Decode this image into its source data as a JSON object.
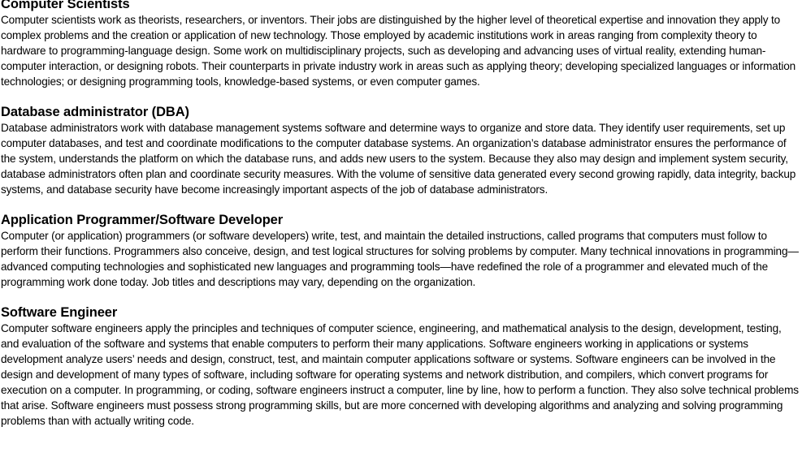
{
  "sections": [
    {
      "heading": "Computer Scientists",
      "body": "Computer scientists work as theorists, researchers, or inventors. Their jobs are distinguished by the higher level of theoretical expertise and innovation they apply to complex problems and the creation or application of new technology. Those employed by academic institutions work in areas ranging from complexity theory to hardware to programming-language design. Some work on multidisciplinary projects, such as developing and advancing uses of virtual reality, extending human-computer interaction, or designing robots. Their counterparts in private industry work in areas such as applying theory; developing specialized languages or information technologies; or designing programming tools, knowledge-based systems, or even computer games."
    },
    {
      "heading": "Database administrator (DBA)",
      "body": "Database administrators work with database management systems software and determine ways to organize and store data. They identify user requirements, set up computer databases, and test and coordinate modifications to the computer database systems. An organization’s database administrator ensures the performance of the system, understands the platform on which the database runs, and adds new users to the system. Because they also may design and implement system security, database administrators often plan and coordinate security measures. With the volume of sensitive data generated every second growing rapidly, data integrity, backup systems, and database security have become increasingly important aspects of the job of database administrators."
    },
    {
      "heading": "Application Programmer/Software Developer",
      "body": "Computer (or application) programmers (or software developers) write, test, and maintain the detailed instructions, called programs that computers must follow to perform their functions. Programmers also conceive, design, and test logical structures for solving problems by computer. Many technical innovations in programming—advanced computing technologies and sophisticated new languages and programming tools—have redefined the role of a programmer and elevated much of the programming work done today. Job titles and descriptions may vary, depending on the organization."
    },
    {
      "heading": "Software Engineer",
      "body": "Computer software engineers apply the principles and techniques of computer science, engineering, and mathematical analysis to the design, development, testing, and evaluation of the software and systems that enable computers to perform their many applications. Software engineers working in applications or systems development analyze users’ needs and design, construct, test, and maintain computer applications software or systems. Software engineers can be involved in the design and development of many types of software, including software for operating systems and network distribution, and compilers, which convert programs for execution on a computer. In programming, or coding, software engineers instruct a computer, line by line, how to perform a function. They also solve technical problems that arise. Software engineers must possess strong programming skills, but are more concerned with developing algorithms and analyzing and solving programming problems than with actually writing code."
    }
  ]
}
